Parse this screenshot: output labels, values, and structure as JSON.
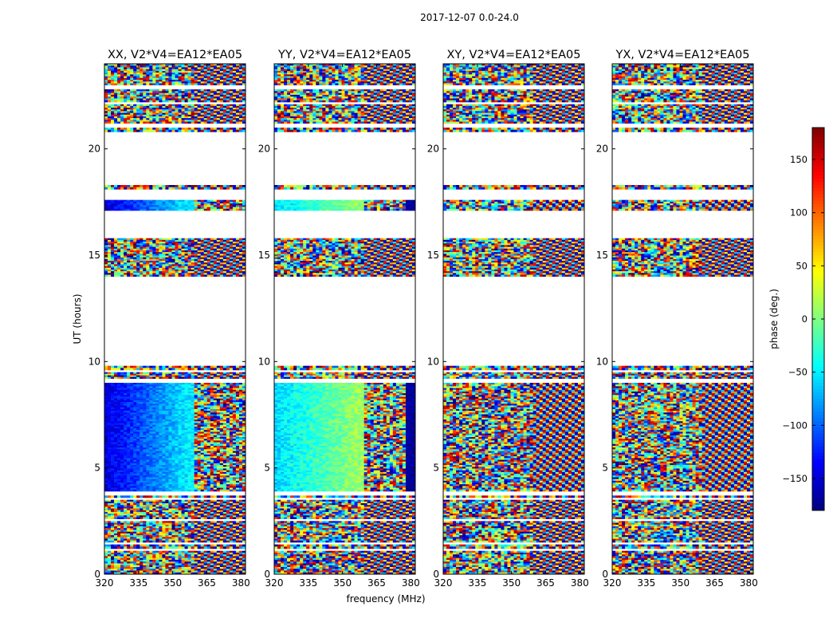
{
  "figure_title": "2017-12-07 0.0-24.0",
  "colorbar": {
    "label": "phase (deg.)",
    "range": [
      -180,
      180
    ],
    "ticks": [
      -150,
      -100,
      -50,
      0,
      50,
      100,
      150
    ],
    "tick_labels": [
      "−150",
      "−100",
      "−50",
      "0",
      "50",
      "100",
      "150"
    ],
    "colormap": [
      "#00007f",
      "#0000ff",
      "#007fff",
      "#00ffff",
      "#7fff7f",
      "#ffff00",
      "#ff7f00",
      "#ff0000",
      "#7f0000"
    ]
  },
  "chart_data": {
    "type": "heatmap",
    "title": "2017-12-07 0.0-24.0",
    "xlabel": "frequency (MHz)",
    "ylabel": "UT (hours)",
    "xlim": [
      320,
      382
    ],
    "ylim": [
      0,
      24
    ],
    "x_ticks": [
      320,
      335,
      350,
      365,
      380
    ],
    "x_tick_labels": [
      "320",
      "335",
      "350",
      "365",
      "380"
    ],
    "y_ticks": [
      0,
      5,
      10,
      15,
      20
    ],
    "y_tick_labels": [
      "0",
      "5",
      "10",
      "15",
      "20"
    ],
    "value_range": [
      -180,
      180
    ],
    "value_label": "phase (deg.)",
    "panels": [
      {
        "title": "XX, V2*V4=EA12*EA05",
        "kind": "parallel",
        "base_phase": -150,
        "hi_phase": 150
      },
      {
        "title": "YY, V2*V4=EA12*EA05",
        "kind": "parallel",
        "base_phase": -60,
        "hi_phase": 150
      },
      {
        "title": "XY, V2*V4=EA12*EA05",
        "kind": "cross",
        "base_phase": 0,
        "hi_phase": 0
      },
      {
        "title": "YX, V2*V4=EA12*EA05",
        "kind": "cross",
        "base_phase": 0,
        "hi_phase": 0
      }
    ],
    "data_blocks_ut": [
      {
        "start": 0.0,
        "end": 1.1,
        "quality": "noisy"
      },
      {
        "start": 1.2,
        "end": 1.4,
        "quality": "noisy"
      },
      {
        "start": 1.5,
        "end": 2.5,
        "quality": "noisy"
      },
      {
        "start": 2.6,
        "end": 3.5,
        "quality": "noisy"
      },
      {
        "start": 3.6,
        "end": 3.7,
        "quality": "noisy"
      },
      {
        "start": 3.9,
        "end": 9.0,
        "quality": "coherent"
      },
      {
        "start": 9.2,
        "end": 9.5,
        "quality": "noisy"
      },
      {
        "start": 9.6,
        "end": 9.8,
        "quality": "noisy"
      },
      {
        "start": 14.0,
        "end": 15.8,
        "quality": "noisy"
      },
      {
        "start": 17.1,
        "end": 17.6,
        "quality": "coherent"
      },
      {
        "start": 18.1,
        "end": 18.3,
        "quality": "noisy"
      },
      {
        "start": 20.8,
        "end": 21.0,
        "quality": "noisy"
      },
      {
        "start": 21.2,
        "end": 22.1,
        "quality": "noisy"
      },
      {
        "start": 22.2,
        "end": 22.8,
        "quality": "noisy"
      },
      {
        "start": 23.0,
        "end": 24.0,
        "quality": "noisy"
      }
    ]
  }
}
